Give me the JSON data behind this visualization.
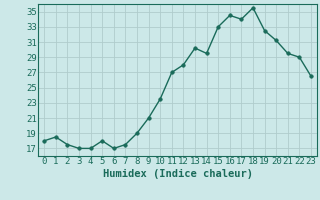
{
  "x": [
    0,
    1,
    2,
    3,
    4,
    5,
    6,
    7,
    8,
    9,
    10,
    11,
    12,
    13,
    14,
    15,
    16,
    17,
    18,
    19,
    20,
    21,
    22,
    23
  ],
  "y": [
    18,
    18.5,
    17.5,
    17,
    17,
    18,
    17,
    17.5,
    19,
    21,
    23.5,
    27,
    28,
    30.2,
    29.5,
    33,
    34.5,
    34,
    35.5,
    32.5,
    31.2,
    29.5,
    29,
    26.5
  ],
  "line_color": "#1a6b5a",
  "marker": "o",
  "marker_size": 2.5,
  "bg_color": "#cce8e8",
  "grid_color": "#b0cccc",
  "xlabel": "Humidex (Indice chaleur)",
  "xlim": [
    -0.5,
    23.5
  ],
  "ylim": [
    16,
    36
  ],
  "yticks": [
    17,
    19,
    21,
    23,
    25,
    27,
    29,
    31,
    33,
    35
  ],
  "xticks": [
    0,
    1,
    2,
    3,
    4,
    5,
    6,
    7,
    8,
    9,
    10,
    11,
    12,
    13,
    14,
    15,
    16,
    17,
    18,
    19,
    20,
    21,
    22,
    23
  ],
  "xlabel_fontsize": 7.5,
  "tick_fontsize": 6.5,
  "line_width": 1.0
}
